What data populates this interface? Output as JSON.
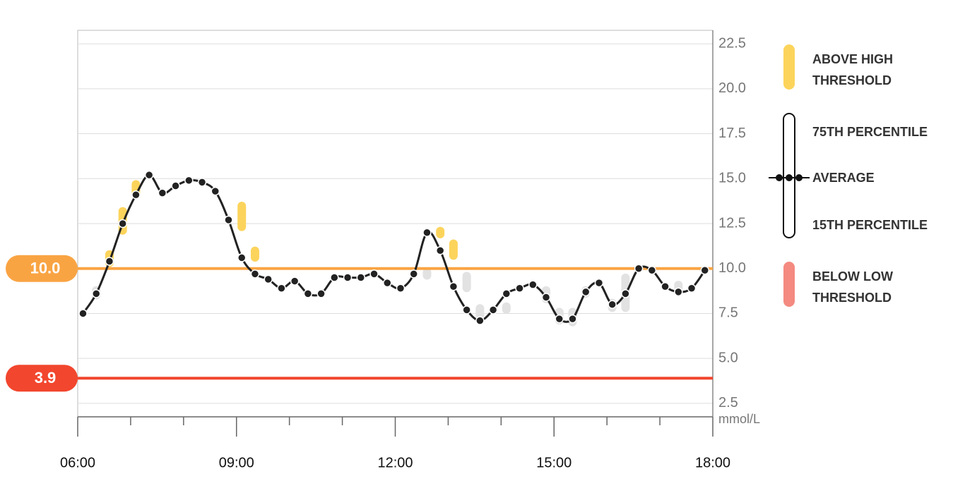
{
  "chart_data": {
    "type": "line",
    "x": [
      6.1,
      6.35,
      6.6,
      6.85,
      7.1,
      7.35,
      7.6,
      7.85,
      8.1,
      8.35,
      8.6,
      8.85,
      9.1,
      9.35,
      9.6,
      9.85,
      10.1,
      10.35,
      10.6,
      10.85,
      11.1,
      11.35,
      11.6,
      11.85,
      12.1,
      12.35,
      12.6,
      12.85,
      13.1,
      13.35,
      13.6,
      13.85,
      14.1,
      14.35,
      14.6,
      14.85,
      15.1,
      15.35,
      15.6,
      15.85,
      16.1,
      16.35,
      16.6,
      16.85,
      17.1,
      17.35,
      17.6,
      17.85
    ],
    "series": [
      {
        "name": "AVERAGE",
        "color": "#222222",
        "values": [
          7.5,
          8.6,
          10.4,
          12.5,
          14.1,
          15.2,
          14.2,
          14.6,
          14.9,
          14.8,
          14.3,
          12.7,
          10.6,
          9.7,
          9.4,
          8.9,
          9.3,
          8.6,
          8.6,
          9.5,
          9.5,
          9.5,
          9.7,
          9.2,
          8.9,
          9.7,
          12.0,
          11.0,
          9.0,
          7.7,
          7.1,
          7.7,
          8.6,
          8.9,
          9.1,
          8.4,
          7.2,
          7.2,
          8.7,
          9.2,
          8.0,
          8.6,
          10.0,
          9.9,
          9.0,
          8.7,
          8.9,
          9.9
        ]
      }
    ],
    "ranges": {
      "x": [
        6.35,
        6.6,
        6.85,
        7.1,
        9.1,
        9.35,
        12.6,
        12.85,
        13.1,
        13.35,
        13.6,
        14.1,
        14.85,
        15.1,
        15.35,
        15.6,
        16.1,
        16.35,
        17.35
      ],
      "low": [
        8.4,
        10.2,
        12.0,
        14.0,
        12.2,
        10.5,
        9.5,
        11.8,
        10.6,
        8.8,
        7.3,
        7.6,
        8.2,
        7.0,
        6.9,
        8.5,
        7.7,
        7.7,
        8.8
      ],
      "high": [
        8.9,
        10.9,
        13.3,
        14.8,
        13.6,
        11.1,
        9.9,
        12.2,
        11.5,
        9.7,
        7.9,
        8.0,
        8.9,
        7.7,
        7.7,
        8.9,
        8.2,
        9.6,
        9.2
      ]
    },
    "high_threshold": {
      "value": 10,
      "label": "10.0",
      "color": "#f9a443"
    },
    "low_threshold": {
      "value": 3.9,
      "label": "3.9",
      "color": "#f2462e"
    },
    "above_color": "#fcd45c",
    "range_color": "#e2e2e2",
    "below_color": "#f48a80",
    "xlim": [
      6,
      18
    ],
    "xticks": [
      {
        "value": 6,
        "label": "06:00"
      },
      {
        "value": 9,
        "label": "09:00"
      },
      {
        "value": 12,
        "label": "12:00"
      },
      {
        "value": 15,
        "label": "15:00"
      },
      {
        "value": 18,
        "label": "18:00"
      }
    ],
    "xminorticks": [
      7,
      8,
      10,
      11,
      13,
      14,
      16,
      17
    ],
    "ylim": [
      1.75,
      23.25
    ],
    "yticks": [
      2.5,
      {
        "value": 5,
        "label": "5.0"
      },
      7.5,
      {
        "value": 10,
        "label": "10.0"
      },
      12.5,
      {
        "value": 15,
        "label": "15.0"
      },
      17.5,
      {
        "value": 20,
        "label": "20.0"
      },
      22.5
    ],
    "y_unit": "mmol/L",
    "grid": true,
    "legend": {
      "above_high": "ABOVE HIGH THRESHOLD",
      "p75": "75TH PERCENTILE",
      "p15": "15TH PERCENTILE",
      "below_low": "BELOW LOW THRESHOLD"
    }
  }
}
